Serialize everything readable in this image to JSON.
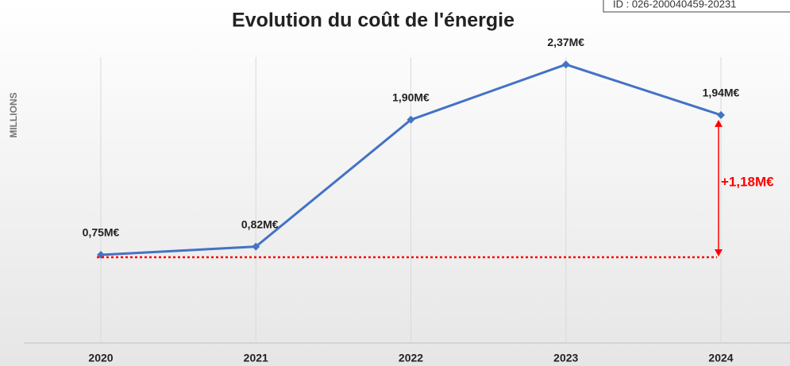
{
  "chart_data": {
    "type": "line",
    "title": "Evolution du coût de l'énergie",
    "ylabel": "MILLIONS",
    "stamp": "ID : 026-200040459-20231",
    "categories": [
      "2020",
      "2021",
      "2022",
      "2023",
      "2024"
    ],
    "series": [
      {
        "name": "Coût de l'énergie",
        "color": "#4472c4",
        "values": [
          0.75,
          0.82,
          1.9,
          2.37,
          1.94
        ],
        "value_labels": [
          "0,75M€",
          "0,82M€",
          "1,90M€",
          "2,37M€",
          "1,94M€"
        ]
      }
    ],
    "annotation": {
      "text": "+1,18M€",
      "color": "#ff0000"
    },
    "ylim": [
      0,
      2.5
    ],
    "grid": "x"
  }
}
